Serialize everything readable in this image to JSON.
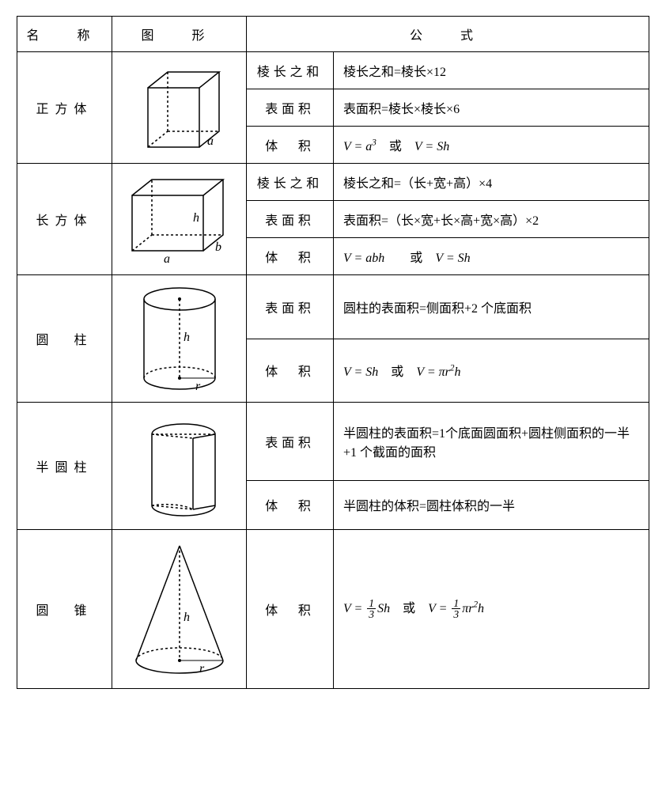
{
  "headers": {
    "name": "名　称",
    "shape": "图　形",
    "formula": "公　式"
  },
  "shapes": [
    {
      "name": "正方体",
      "shape_type": "cube",
      "shape_labels": [
        "a"
      ],
      "rows": [
        {
          "sublabel": "棱长之和",
          "formula_text": "棱长之和=棱长×12",
          "formula_html": ""
        },
        {
          "sublabel": "表面积",
          "formula_text": "表面积=棱长×棱长×6",
          "formula_html": ""
        },
        {
          "sublabel": "体　积",
          "formula_text": "",
          "formula_html": "<span class='formula'>V = a<sup>3</sup></span>　<span class='cn'>或</span>　<span class='formula'>V = Sh</span>"
        }
      ]
    },
    {
      "name": "长方体",
      "shape_type": "cuboid",
      "shape_labels": [
        "a",
        "b",
        "h"
      ],
      "rows": [
        {
          "sublabel": "棱长之和",
          "formula_text": "棱长之和=（长+宽+高）×4",
          "formula_html": ""
        },
        {
          "sublabel": "表面积",
          "formula_text": "表面积=（长×宽+长×高+宽×高）×2",
          "formula_html": ""
        },
        {
          "sublabel": "体　积",
          "formula_text": "",
          "formula_html": "<span class='formula'>V = abh</span>　　<span class='cn'>或</span>　<span class='formula'>V = Sh</span>"
        }
      ]
    },
    {
      "name": "圆　柱",
      "shape_type": "cylinder",
      "shape_labels": [
        "h",
        "r"
      ],
      "rows": [
        {
          "sublabel": "表面积",
          "formula_text": "圆柱的表面积=侧面积+2 个底面积",
          "formula_html": ""
        },
        {
          "sublabel": "体　积",
          "formula_text": "",
          "formula_html": "<span class='formula'>V = Sh</span>　<span class='cn'>或</span>　<span class='formula'>V = πr<sup>2</sup>h</span>"
        }
      ]
    },
    {
      "name": "半圆柱",
      "shape_type": "half_cylinder",
      "shape_labels": [],
      "rows": [
        {
          "sublabel": "表面积",
          "formula_text": "半圆柱的表面积=1个底面圆面积+圆柱侧面积的一半+1 个截面的面积",
          "formula_html": ""
        },
        {
          "sublabel": "体　积",
          "formula_text": "半圆柱的体积=圆柱体积的一半",
          "formula_html": ""
        }
      ]
    },
    {
      "name": "圆　锥",
      "shape_type": "cone",
      "shape_labels": [
        "h",
        "r"
      ],
      "rows": [
        {
          "sublabel": "体　积",
          "formula_text": "",
          "formula_html": "<span class='formula'>V = <span class='frac'><span class='num'>1</span><span class='den'>3</span></span>Sh</span>　<span class='cn'>或</span>　<span class='formula'>V = <span class='frac'><span class='num'>1</span><span class='den'>3</span></span>πr<sup>2</sup>h</span>"
        }
      ]
    }
  ],
  "colors": {
    "border": "#000000",
    "background": "#ffffff",
    "shape_stroke": "#000000"
  }
}
